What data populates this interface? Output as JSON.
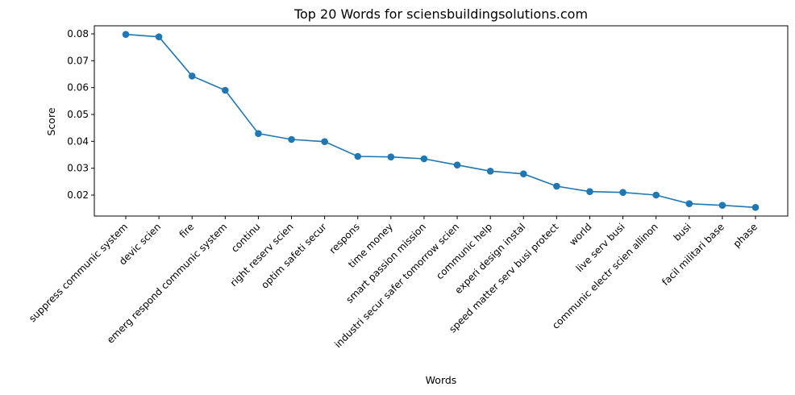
{
  "chart_data": {
    "type": "line",
    "title": "Top 20 Words for sciensbuildingsolutions.com",
    "xlabel": "Words",
    "ylabel": "Score",
    "categories": [
      "suppress communic system",
      "devic scien",
      "fire",
      "emerg respond communic system",
      "continu",
      "right reserv scien",
      "optim safeti secur",
      "respons",
      "time money",
      "smart passion mission",
      "industri secur safer tomorrow scien",
      "communic help",
      "experi design instal",
      "speed matter serv busi protect",
      "world",
      "live serv busi",
      "communic electr scien allinon",
      "busi",
      "facil militari base",
      "phase"
    ],
    "values": [
      0.0798,
      0.0789,
      0.0643,
      0.059,
      0.0429,
      0.0407,
      0.0399,
      0.0344,
      0.0342,
      0.0335,
      0.0312,
      0.0289,
      0.0279,
      0.0233,
      0.0213,
      0.021,
      0.02,
      0.0168,
      0.0162,
      0.0154
    ],
    "ylim": [
      0.0122,
      0.083
    ],
    "yticks": [
      "0.02",
      "0.03",
      "0.04",
      "0.05",
      "0.06",
      "0.07",
      "0.08"
    ],
    "grid": false,
    "color": "#1f77b4"
  }
}
